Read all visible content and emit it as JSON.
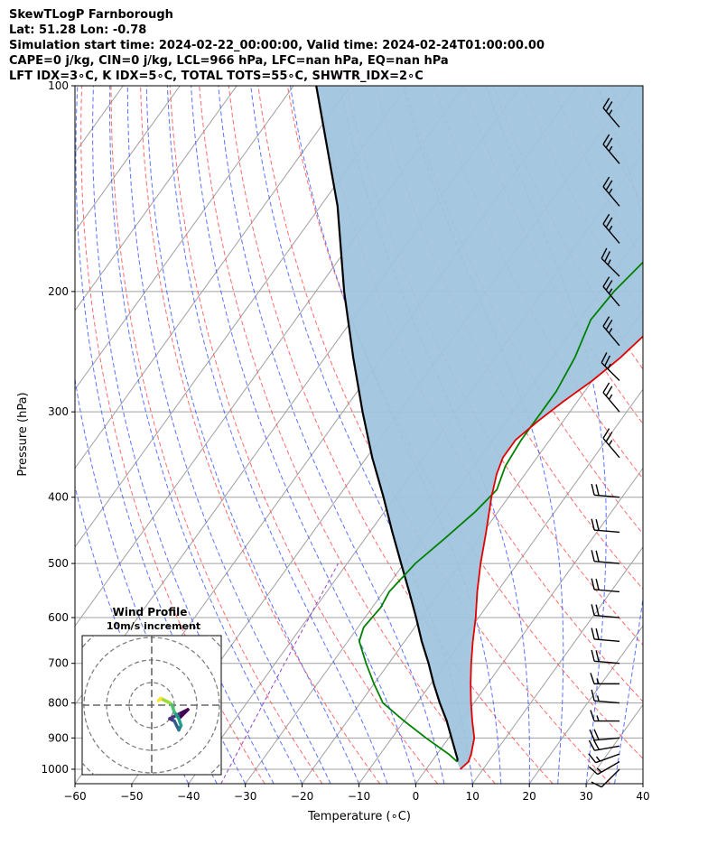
{
  "header": {
    "lines": [
      "SkewTLogP Farnborough",
      "Lat: 51.28   Lon: -0.78",
      "Simulation start time: 2024-02-22_00:00:00, Valid time: 2024-02-24T01:00:00.00",
      "CAPE=0 j/kg, CIN=0 j/kg, LCL=966 hPa, LFC=nan hPa, EQ=nan hPa",
      "LFT IDX=3∘C, K IDX=5∘C, TOTAL TOTS=55∘C, SHWTR_IDX=2∘C"
    ]
  },
  "chart_data": {
    "type": "skewt-logp",
    "xlabel": "Temperature (∘C)",
    "ylabel": "Pressure (hPa)",
    "xlim": [
      -60,
      40
    ],
    "ylim": [
      1050,
      100
    ],
    "xticks": [
      -60,
      -50,
      -40,
      -30,
      -20,
      -10,
      0,
      10,
      20,
      30,
      40
    ],
    "yticks": [
      100,
      200,
      300,
      400,
      500,
      600,
      700,
      800,
      900,
      1000
    ],
    "colors": {
      "temperature": "#e00000",
      "dewpoint": "#008000",
      "parcel": "#000000",
      "cin_shade": "#a0c4de",
      "dry_adiabat": "#ff5050",
      "moist_adiabat": "#3050ff",
      "mixing_ratio": "#9a40c8",
      "isotherm": "#a0a0a0"
    },
    "temperature_profile": [
      [
        1000,
        6
      ],
      [
        975,
        6.5
      ],
      [
        950,
        6
      ],
      [
        900,
        4.5
      ],
      [
        850,
        2
      ],
      [
        800,
        -0.5
      ],
      [
        750,
        -3
      ],
      [
        700,
        -5.5
      ],
      [
        650,
        -8
      ],
      [
        600,
        -10.5
      ],
      [
        550,
        -13.5
      ],
      [
        500,
        -16.5
      ],
      [
        450,
        -19.5
      ],
      [
        400,
        -23
      ],
      [
        370,
        -25
      ],
      [
        350,
        -26
      ],
      [
        330,
        -26
      ],
      [
        310,
        -24.5
      ],
      [
        290,
        -22.5
      ],
      [
        270,
        -20
      ],
      [
        250,
        -18
      ],
      [
        230,
        -16.5
      ],
      [
        210,
        -15.5
      ],
      [
        190,
        -14
      ],
      [
        170,
        -11
      ],
      [
        150,
        -8.5
      ],
      [
        130,
        -6.5
      ],
      [
        115,
        -4
      ],
      [
        100,
        -2
      ]
    ],
    "dewpoint_profile": [
      [
        975,
        4.5
      ],
      [
        950,
        2
      ],
      [
        900,
        -4
      ],
      [
        850,
        -10
      ],
      [
        800,
        -16
      ],
      [
        750,
        -20
      ],
      [
        700,
        -24
      ],
      [
        650,
        -28
      ],
      [
        620,
        -29
      ],
      [
        580,
        -28.5
      ],
      [
        550,
        -29
      ],
      [
        500,
        -28
      ],
      [
        460,
        -26
      ],
      [
        420,
        -24
      ],
      [
        390,
        -23
      ],
      [
        360,
        -24.5
      ],
      [
        330,
        -25
      ],
      [
        300,
        -25
      ],
      [
        280,
        -25
      ],
      [
        250,
        -26
      ],
      [
        220,
        -28
      ],
      [
        200,
        -27.5
      ],
      [
        180,
        -26
      ],
      [
        160,
        -23
      ],
      [
        140,
        -19
      ],
      [
        120,
        -14
      ],
      [
        100,
        -10
      ]
    ],
    "parcel_profile": [
      [
        975,
        4.5
      ],
      [
        966,
        4.2
      ],
      [
        900,
        0.5
      ],
      [
        850,
        -2.5
      ],
      [
        800,
        -6
      ],
      [
        750,
        -9.5
      ],
      [
        700,
        -13
      ],
      [
        650,
        -17
      ],
      [
        600,
        -21
      ],
      [
        550,
        -25.5
      ],
      [
        500,
        -30.5
      ],
      [
        450,
        -36
      ],
      [
        400,
        -42
      ],
      [
        350,
        -49
      ],
      [
        300,
        -56.5
      ],
      [
        250,
        -65
      ],
      [
        200,
        -75
      ],
      [
        150,
        -87
      ],
      [
        100,
        -106
      ]
    ],
    "wind_barbs": [
      {
        "p": 1000,
        "speed_kt": 10,
        "dir_deg": 225
      },
      {
        "p": 975,
        "speed_kt": 15,
        "dir_deg": 240
      },
      {
        "p": 950,
        "speed_kt": 15,
        "dir_deg": 250
      },
      {
        "p": 925,
        "speed_kt": 20,
        "dir_deg": 260
      },
      {
        "p": 900,
        "speed_kt": 20,
        "dir_deg": 265
      },
      {
        "p": 850,
        "speed_kt": 15,
        "dir_deg": 270
      },
      {
        "p": 800,
        "speed_kt": 15,
        "dir_deg": 275
      },
      {
        "p": 750,
        "speed_kt": 15,
        "dir_deg": 270
      },
      {
        "p": 700,
        "speed_kt": 20,
        "dir_deg": 275
      },
      {
        "p": 650,
        "speed_kt": 20,
        "dir_deg": 275
      },
      {
        "p": 600,
        "speed_kt": 20,
        "dir_deg": 275
      },
      {
        "p": 550,
        "speed_kt": 20,
        "dir_deg": 275
      },
      {
        "p": 500,
        "speed_kt": 20,
        "dir_deg": 275
      },
      {
        "p": 450,
        "speed_kt": 20,
        "dir_deg": 275
      },
      {
        "p": 400,
        "speed_kt": 20,
        "dir_deg": 275
      },
      {
        "p": 350,
        "speed_kt": 25,
        "dir_deg": 320
      },
      {
        "p": 300,
        "speed_kt": 25,
        "dir_deg": 320
      },
      {
        "p": 270,
        "speed_kt": 25,
        "dir_deg": 315
      },
      {
        "p": 240,
        "speed_kt": 25,
        "dir_deg": 320
      },
      {
        "p": 210,
        "speed_kt": 25,
        "dir_deg": 320
      },
      {
        "p": 190,
        "speed_kt": 25,
        "dir_deg": 315
      },
      {
        "p": 170,
        "speed_kt": 25,
        "dir_deg": 320
      },
      {
        "p": 150,
        "speed_kt": 25,
        "dir_deg": 320
      },
      {
        "p": 130,
        "speed_kt": 25,
        "dir_deg": 320
      },
      {
        "p": 115,
        "speed_kt": 25,
        "dir_deg": 320
      }
    ],
    "hodograph": {
      "title": "Wind Profile",
      "subtitle": "10m/s increment",
      "points": [
        [
          1.2,
          -0.6
        ],
        [
          1.6,
          -0.2
        ],
        [
          1.2,
          -0.4
        ],
        [
          0.8,
          -0.6
        ],
        [
          1.0,
          -0.7
        ],
        [
          1.1,
          -0.9
        ],
        [
          1.2,
          -1.1
        ],
        [
          1.3,
          -0.9
        ],
        [
          1.2,
          -0.6
        ],
        [
          1.0,
          -0.3
        ],
        [
          0.9,
          0.0
        ],
        [
          0.8,
          0.1
        ],
        [
          0.6,
          0.2
        ],
        [
          0.4,
          0.3
        ],
        [
          0.3,
          0.2
        ]
      ]
    }
  }
}
